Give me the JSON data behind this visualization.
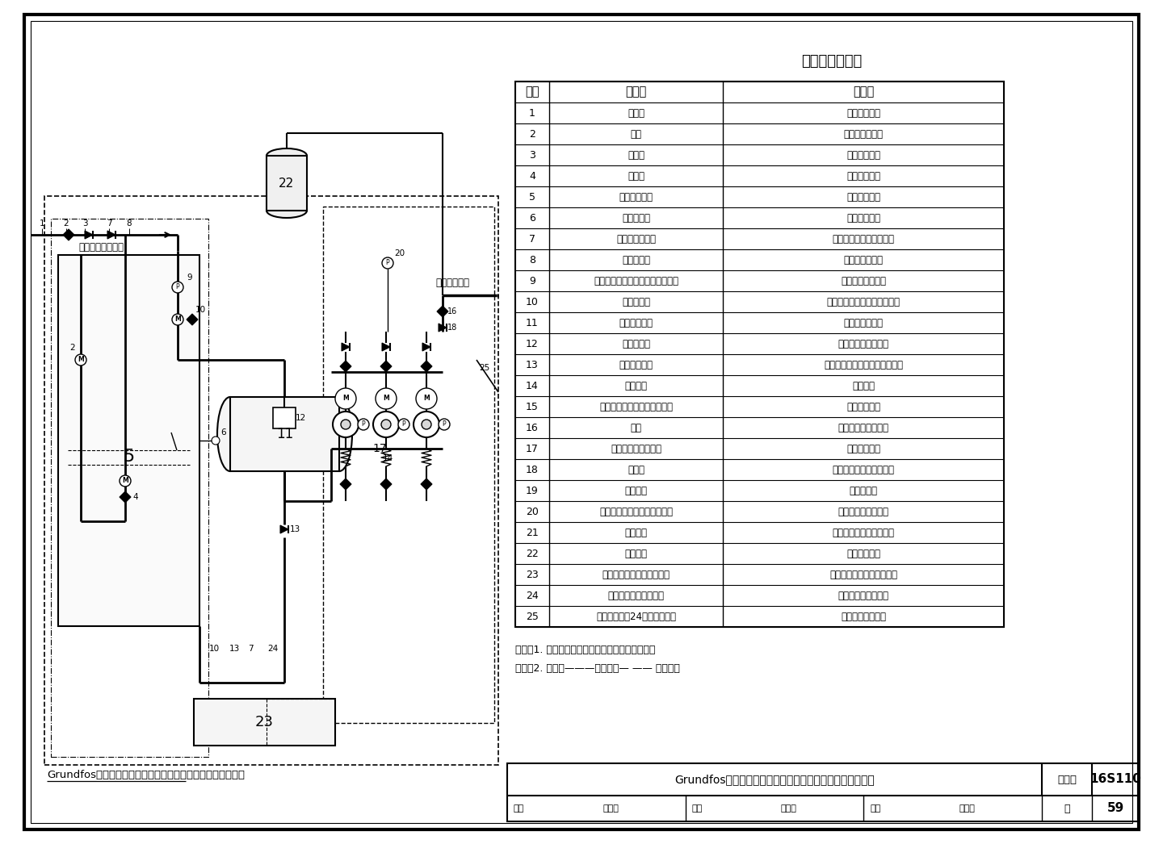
{
  "title": "设备组成名称表",
  "table_header": [
    "序号",
    "名　称",
    "用　途"
  ],
  "table_rows": [
    [
      "1",
      "进水管",
      "市政管网进水"
    ],
    [
      "2",
      "阀门",
      "进水管控制阀门"
    ],
    [
      "3",
      "过滤器",
      "过滤管网进水"
    ],
    [
      "4",
      "电动阀",
      "水箱自动补水"
    ],
    [
      "5",
      "不锈钢储水箱",
      "储存所需水量"
    ],
    [
      "6",
      "液位传感器",
      "监控水箱水位"
    ],
    [
      "7",
      "可曲挠橡胶接头",
      "隔振、便于管路拆卸检修"
    ],
    [
      "8",
      "倒流防止器",
      "防止压力水回流"
    ],
    [
      "9",
      "市政管网压力传感器（带数显表）",
      "检测市政管网压力"
    ],
    [
      "10",
      "进水电动阀",
      "叠压进水与水箱吸水自动切换"
    ],
    [
      "11",
      "不锈钢稳流罐",
      "水泵吸水管稳流"
    ],
    [
      "12",
      "真空抑制器",
      "防止稳流罐抽吸真空"
    ],
    [
      "13",
      "橡胶瓣止回阀",
      "叠压吸水时防止市政水进入水箱"
    ],
    [
      "14",
      "吸水总管",
      "水泵吸水"
    ],
    [
      "15",
      "进水压力传感器（带压力表）",
      "水泵干转保护"
    ],
    [
      "16",
      "阀门",
      "水泵进、出水控制阀"
    ],
    [
      "17",
      "数字集成式变频水泵",
      "变频增压供水"
    ],
    [
      "18",
      "止回阀",
      "防止用户管网压力水回流"
    ],
    [
      "19",
      "出水总管",
      "供用户用水"
    ],
    [
      "20",
      "出水压力传感器（带压力表）",
      "检测设备出水管压力"
    ],
    [
      "21",
      "金属软管",
      "隔振、便于管路拆卸检修"
    ],
    [
      "22",
      "气压水罐",
      "稳定系统压力"
    ],
    [
      "23",
      "数显式智能水泵专用控制柜",
      "控制及参数设定、显示功能"
    ],
    [
      "24",
      "紫外线消毒器（选配）",
      "对水质在线消毒灭菌"
    ],
    [
      "25",
      "消毒器接口（24天配置时用）",
      "供连接消毒装置用"
    ]
  ],
  "diagram_title": "Grundfos系列箱式全变频叠压供水设备基本组成及控制原理图",
  "footer_title": "Grundfos系列箱式全变频叠压供水设备基本组成及控制原理",
  "footer_atlas": "图集号",
  "footer_atlas_num": "16S110",
  "footer_page_label": "页",
  "footer_page_num": "59",
  "footer_review": "审核",
  "footer_name1": "罗定元",
  "footer_check": "校对",
  "footer_name2": "尹忠珍",
  "footer_design": "设计",
  "footer_name3": "施　炜",
  "note_line1": "说明：1. 图中虚线框内为厂家成套设备供货范围。",
  "note_line2": "　　　2. 图例：———控制线；— —— 信号线。",
  "bg_color": "#ffffff"
}
